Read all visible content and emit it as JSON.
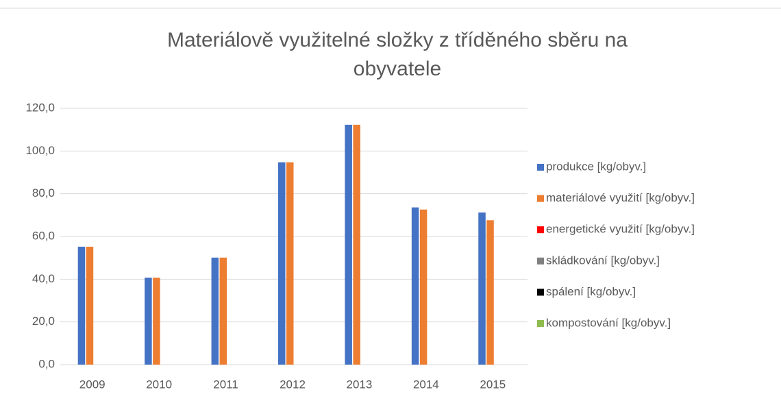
{
  "chart_data": {
    "type": "bar",
    "title": "Materiálově využitelné složky z tříděného sběru na obyvatele",
    "categories": [
      "2009",
      "2010",
      "2011",
      "2012",
      "2013",
      "2014",
      "2015"
    ],
    "series": [
      {
        "name": "produkce  [kg/obyv.]",
        "color": "#4472c4",
        "values": [
          55.2,
          40.7,
          50.1,
          94.7,
          112.3,
          73.6,
          71.2
        ]
      },
      {
        "name": "materiálové využití  [kg/obyv.]",
        "color": "#ed7d31",
        "values": [
          55.2,
          40.7,
          50.1,
          94.7,
          112.3,
          72.6,
          67.6
        ]
      },
      {
        "name": "energetické využití [kg/obyv.]",
        "color": "#ff0000",
        "values": [
          0,
          0,
          0,
          0,
          0,
          0,
          0
        ]
      },
      {
        "name": "skládkování [kg/obyv.]",
        "color": "#808080",
        "values": [
          0,
          0,
          0,
          0,
          0,
          0,
          0
        ]
      },
      {
        "name": "spálení [kg/obyv.]",
        "color": "#000000",
        "values": [
          0,
          0,
          0,
          0,
          0,
          0,
          0
        ]
      },
      {
        "name": "kompostování  [kg/obyv.]",
        "color": "#8fbc4f",
        "values": [
          0,
          0,
          0,
          0,
          0,
          0,
          0
        ]
      }
    ],
    "ylim": [
      0,
      120
    ],
    "yticks": [
      {
        "value": 0,
        "label": "0,0"
      },
      {
        "value": 20,
        "label": "20,0"
      },
      {
        "value": 40,
        "label": "40,0"
      },
      {
        "value": 60,
        "label": "60,0"
      },
      {
        "value": 80,
        "label": "80,0"
      },
      {
        "value": 100,
        "label": "100,0"
      },
      {
        "value": 120,
        "label": "120,0"
      }
    ],
    "grid": true,
    "legend": "right"
  }
}
